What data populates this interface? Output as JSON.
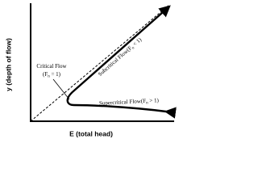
{
  "axes": {
    "y_label": "y (depth of flow)",
    "x_label": "E (total head)"
  },
  "labels": {
    "critical": {
      "line1": "Critical Flow",
      "line2_head": "(F",
      "line2_sub": "n",
      "line2_tail": " = 1)"
    },
    "subcritical": {
      "head": "Subcritical Flow(F",
      "sub": "n",
      "tail": " < 1)"
    },
    "supercritical": {
      "head": "Supercritical Flow(F",
      "sub": "n",
      "tail": " > 1)"
    }
  }
}
